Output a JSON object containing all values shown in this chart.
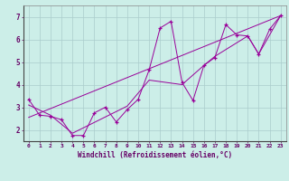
{
  "xlabel": "Windchill (Refroidissement éolien,°C)",
  "bg_color": "#cceee8",
  "line_color": "#990099",
  "grid_color": "#aacccc",
  "xlim": [
    -0.5,
    23.5
  ],
  "ylim": [
    1.5,
    7.5
  ],
  "xticks": [
    0,
    1,
    2,
    3,
    4,
    5,
    6,
    7,
    8,
    9,
    10,
    11,
    12,
    13,
    14,
    15,
    16,
    17,
    18,
    19,
    20,
    21,
    22,
    23
  ],
  "yticks": [
    2,
    3,
    4,
    5,
    6,
    7
  ],
  "data_x": [
    0,
    1,
    2,
    3,
    4,
    5,
    6,
    7,
    8,
    9,
    10,
    11,
    12,
    13,
    14,
    15,
    16,
    17,
    18,
    19,
    20,
    21,
    22,
    23
  ],
  "data_y": [
    3.35,
    2.65,
    2.6,
    2.45,
    1.75,
    1.75,
    2.75,
    3.0,
    2.35,
    2.9,
    3.35,
    4.65,
    6.5,
    6.8,
    4.1,
    3.3,
    4.85,
    5.2,
    6.65,
    6.2,
    6.15,
    5.35,
    6.45,
    7.05
  ],
  "trend_x": [
    0,
    23
  ],
  "trend_y": [
    2.55,
    7.05
  ],
  "smooth_x": [
    0,
    2,
    4,
    9,
    11,
    14,
    16,
    17,
    20,
    21,
    23
  ],
  "smooth_y": [
    3.1,
    2.65,
    1.85,
    3.05,
    4.2,
    4.0,
    4.85,
    5.25,
    6.15,
    5.35,
    7.05
  ],
  "tick_color": "#660066",
  "label_color": "#660066"
}
